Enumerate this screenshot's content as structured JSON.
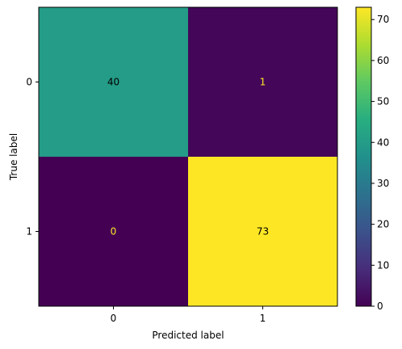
{
  "chart_data": {
    "type": "heatmap",
    "title": "",
    "xlabel": "Predicted label",
    "ylabel": "True label",
    "x_categories": [
      "0",
      "1"
    ],
    "y_categories": [
      "0",
      "1"
    ],
    "values": [
      [
        40,
        1
      ],
      [
        0,
        73
      ]
    ],
    "colormap": "viridis",
    "colorbar": {
      "range": [
        0,
        73
      ],
      "ticks": [
        0,
        10,
        20,
        30,
        40,
        50,
        60,
        70
      ]
    },
    "text_colors": {
      "dark_cell": "#fde725",
      "light_cell": "#000000"
    }
  }
}
